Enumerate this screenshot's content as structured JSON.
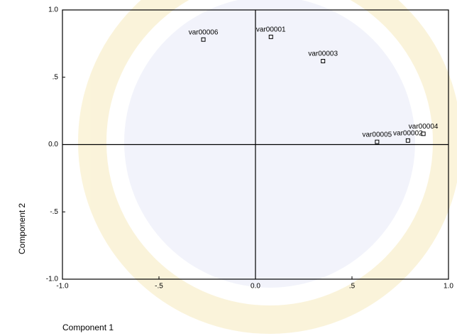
{
  "chart_data": {
    "type": "scatter",
    "x_label": "Component 1",
    "y_label": "Component 2",
    "point_labels": [
      "var00006",
      "var00001",
      "var00003",
      "var00005",
      "var00002",
      "var00004"
    ],
    "x": [
      -0.27,
      0.08,
      0.35,
      0.63,
      0.79,
      0.87
    ],
    "values": [
      0.78,
      0.8,
      0.62,
      0.02,
      0.03,
      0.08
    ],
    "xlim": [
      -1.0,
      1.0
    ],
    "ylim": [
      -1.0,
      1.0
    ],
    "xticks": [
      {
        "value": -1.0,
        "label": "-1.0"
      },
      {
        "value": -0.5,
        "label": "-.5"
      },
      {
        "value": 0,
        "label": "0.0"
      },
      {
        "value": 0.5,
        "label": ".5"
      },
      {
        "value": 1.0,
        "label": "1.0"
      }
    ],
    "yticks": [
      {
        "value": -1.0,
        "label": "-1.0"
      },
      {
        "value": -0.5,
        "label": "-.5"
      },
      {
        "value": 0,
        "label": "0.0"
      },
      {
        "value": 0.5,
        "label": ".5"
      },
      {
        "value": 1.0,
        "label": "1.0"
      }
    ]
  }
}
